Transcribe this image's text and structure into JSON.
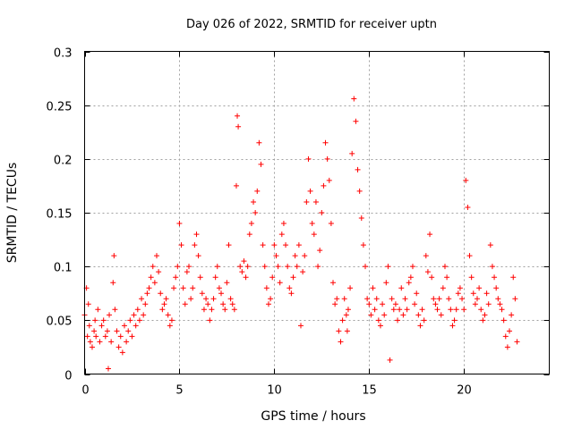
{
  "chart_data": {
    "type": "scatter",
    "title": "Day 026 of 2022, SRMTID for receiver uptn",
    "xlabel": "GPS time / hours",
    "ylabel": "SRMTID / TECUs",
    "xlim": [
      0,
      24.5
    ],
    "ylim": [
      0,
      0.3
    ],
    "x_ticks": [
      0,
      5,
      10,
      15,
      20
    ],
    "x_tick_labels": [
      "0",
      "5",
      "10",
      "15",
      "20"
    ],
    "y_ticks": [
      0,
      0.05,
      0.1,
      0.15,
      0.2,
      0.25,
      0.3
    ],
    "y_tick_labels": [
      "0",
      "0.05",
      "0.1",
      "0.15",
      "0.2",
      "0.25",
      "0.3"
    ],
    "grid": true,
    "marker": "+",
    "marker_color": "#ff0000",
    "series": [
      {
        "name": "SRMTID",
        "x": [
          0.0,
          0.1,
          0.15,
          0.2,
          0.25,
          0.3,
          0.4,
          0.5,
          0.55,
          0.6,
          0.7,
          0.8,
          0.9,
          1.0,
          1.1,
          1.2,
          1.25,
          1.3,
          1.4,
          1.5,
          1.55,
          1.6,
          1.7,
          1.8,
          1.9,
          2.0,
          2.1,
          2.2,
          2.3,
          2.4,
          2.5,
          2.6,
          2.7,
          2.8,
          2.9,
          3.0,
          3.1,
          3.2,
          3.3,
          3.4,
          3.5,
          3.6,
          3.7,
          3.8,
          3.9,
          4.0,
          4.1,
          4.2,
          4.3,
          4.4,
          4.5,
          4.6,
          4.7,
          4.8,
          4.9,
          5.0,
          5.1,
          5.2,
          5.3,
          5.4,
          5.5,
          5.6,
          5.7,
          5.8,
          5.9,
          6.0,
          6.1,
          6.2,
          6.3,
          6.4,
          6.5,
          6.6,
          6.7,
          6.8,
          6.9,
          7.0,
          7.1,
          7.2,
          7.3,
          7.4,
          7.5,
          7.6,
          7.7,
          7.8,
          7.9,
          8.0,
          8.05,
          8.1,
          8.2,
          8.3,
          8.4,
          8.5,
          8.6,
          8.7,
          8.8,
          8.9,
          9.0,
          9.1,
          9.2,
          9.3,
          9.4,
          9.5,
          9.6,
          9.7,
          9.8,
          9.9,
          10.0,
          10.1,
          10.2,
          10.3,
          10.4,
          10.5,
          10.6,
          10.7,
          10.8,
          10.9,
          11.0,
          11.1,
          11.2,
          11.3,
          11.4,
          11.5,
          11.6,
          11.7,
          11.8,
          11.9,
          12.0,
          12.1,
          12.2,
          12.3,
          12.4,
          12.5,
          12.6,
          12.7,
          12.8,
          12.9,
          13.0,
          13.1,
          13.2,
          13.3,
          13.4,
          13.5,
          13.6,
          13.7,
          13.8,
          13.85,
          13.9,
          14.0,
          14.1,
          14.2,
          14.3,
          14.4,
          14.5,
          14.6,
          14.7,
          14.8,
          14.9,
          15.0,
          15.1,
          15.2,
          15.3,
          15.4,
          15.5,
          15.6,
          15.7,
          15.8,
          15.9,
          16.0,
          16.1,
          16.2,
          16.3,
          16.4,
          16.5,
          16.6,
          16.7,
          16.8,
          16.9,
          17.0,
          17.1,
          17.2,
          17.3,
          17.4,
          17.5,
          17.6,
          17.7,
          17.8,
          17.9,
          18.0,
          18.1,
          18.2,
          18.3,
          18.4,
          18.5,
          18.6,
          18.7,
          18.8,
          18.9,
          19.0,
          19.1,
          19.2,
          19.3,
          19.4,
          19.5,
          19.6,
          19.7,
          19.8,
          19.9,
          20.0,
          20.1,
          20.2,
          20.3,
          20.4,
          20.5,
          20.6,
          20.7,
          20.8,
          20.9,
          21.0,
          21.1,
          21.2,
          21.3,
          21.4,
          21.5,
          21.6,
          21.7,
          21.8,
          21.9,
          22.0,
          22.1,
          22.2,
          22.3,
          22.4,
          22.5,
          22.6,
          22.7,
          22.8
        ],
        "y": [
          0.055,
          0.08,
          0.035,
          0.065,
          0.045,
          0.03,
          0.025,
          0.04,
          0.05,
          0.035,
          0.06,
          0.03,
          0.045,
          0.05,
          0.035,
          0.04,
          0.005,
          0.055,
          0.03,
          0.085,
          0.11,
          0.06,
          0.04,
          0.025,
          0.035,
          0.02,
          0.045,
          0.03,
          0.04,
          0.05,
          0.035,
          0.055,
          0.045,
          0.06,
          0.05,
          0.07,
          0.055,
          0.065,
          0.075,
          0.08,
          0.09,
          0.1,
          0.085,
          0.11,
          0.095,
          0.075,
          0.06,
          0.065,
          0.07,
          0.055,
          0.045,
          0.05,
          0.08,
          0.09,
          0.1,
          0.14,
          0.12,
          0.08,
          0.065,
          0.095,
          0.1,
          0.07,
          0.08,
          0.12,
          0.13,
          0.11,
          0.09,
          0.075,
          0.06,
          0.07,
          0.065,
          0.05,
          0.06,
          0.07,
          0.09,
          0.1,
          0.08,
          0.075,
          0.065,
          0.06,
          0.085,
          0.12,
          0.07,
          0.065,
          0.06,
          0.175,
          0.24,
          0.23,
          0.1,
          0.095,
          0.105,
          0.09,
          0.1,
          0.13,
          0.14,
          0.16,
          0.15,
          0.17,
          0.215,
          0.195,
          0.12,
          0.1,
          0.08,
          0.065,
          0.07,
          0.09,
          0.12,
          0.11,
          0.1,
          0.085,
          0.13,
          0.14,
          0.12,
          0.1,
          0.08,
          0.075,
          0.09,
          0.11,
          0.1,
          0.12,
          0.045,
          0.095,
          0.11,
          0.16,
          0.2,
          0.17,
          0.14,
          0.13,
          0.16,
          0.1,
          0.115,
          0.15,
          0.175,
          0.215,
          0.2,
          0.18,
          0.14,
          0.085,
          0.065,
          0.07,
          0.04,
          0.03,
          0.05,
          0.07,
          0.055,
          0.04,
          0.06,
          0.08,
          0.205,
          0.256,
          0.235,
          0.19,
          0.17,
          0.145,
          0.12,
          0.1,
          0.07,
          0.065,
          0.055,
          0.08,
          0.06,
          0.07,
          0.05,
          0.045,
          0.065,
          0.055,
          0.085,
          0.1,
          0.013,
          0.07,
          0.06,
          0.065,
          0.05,
          0.06,
          0.08,
          0.055,
          0.07,
          0.06,
          0.085,
          0.09,
          0.1,
          0.065,
          0.075,
          0.055,
          0.045,
          0.06,
          0.05,
          0.11,
          0.095,
          0.13,
          0.09,
          0.07,
          0.065,
          0.06,
          0.07,
          0.055,
          0.08,
          0.1,
          0.09,
          0.07,
          0.06,
          0.045,
          0.05,
          0.06,
          0.075,
          0.08,
          0.07,
          0.06,
          0.18,
          0.155,
          0.11,
          0.09,
          0.075,
          0.065,
          0.07,
          0.08,
          0.06,
          0.05,
          0.055,
          0.075,
          0.065,
          0.12,
          0.1,
          0.09,
          0.08,
          0.07,
          0.065,
          0.06,
          0.05,
          0.035,
          0.025,
          0.04,
          0.055,
          0.09,
          0.07,
          0.03
        ]
      }
    ]
  }
}
